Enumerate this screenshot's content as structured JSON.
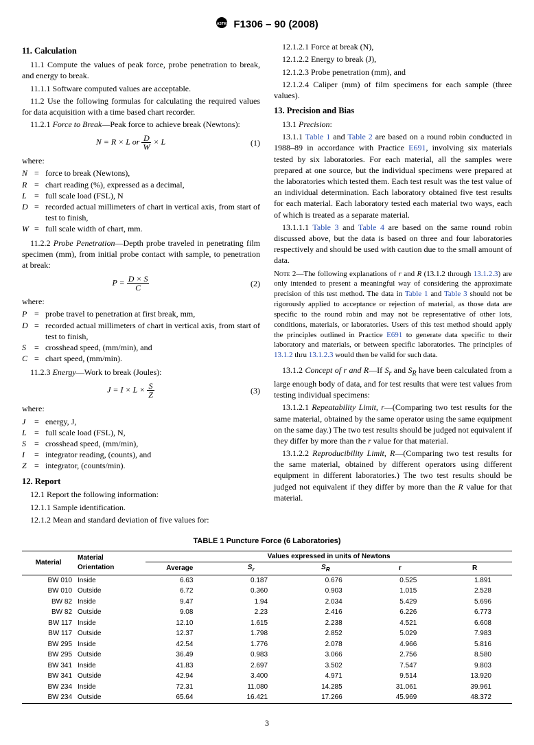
{
  "header": {
    "designation": "F1306 – 90  (2008)"
  },
  "left": {
    "s11": {
      "head": "11.  Calculation",
      "p11_1": "11.1 Compute the values of peak force, probe penetration to break, and energy to break.",
      "p11_1_1": "11.1.1 Software computed values are acceptable.",
      "p11_2": "11.2 Use the following formulas for calculating the required values for data acquisition with a time based chart recorder.",
      "p11_2_1_a": "11.2.1 ",
      "p11_2_1_label": "Force to Break",
      "p11_2_1_b": "—Peak force to achieve break (Newtons):",
      "eq1_pre": "N = R × L or ",
      "eq1_num": "D",
      "eq1_den": "W",
      "eq1_post": " × L",
      "eq1_no": "(1)",
      "where": "where:",
      "defs1": [
        {
          "sym": "N",
          "def": "force to break (Newtons),"
        },
        {
          "sym": "R",
          "def": "chart reading (%), expressed as a decimal,"
        },
        {
          "sym": "L",
          "def": "full scale load (FSL), N"
        },
        {
          "sym": "D",
          "def": "recorded actual millimeters of chart in vertical axis, from start of test to finish,"
        },
        {
          "sym": "W",
          "def": "full scale width of chart, mm."
        }
      ],
      "p11_2_2_a": "11.2.2 ",
      "p11_2_2_label": "Probe Penetration",
      "p11_2_2_b": "—Depth probe traveled in penetrating film specimen (mm), from initial probe contact with sample, to penetration at break:",
      "eq2_pre": "P = ",
      "eq2_num": "D × S",
      "eq2_den": "C",
      "eq2_no": "(2)",
      "defs2": [
        {
          "sym": "P",
          "def": "probe travel to penetration at first break, mm,"
        },
        {
          "sym": "D",
          "def": "recorded actual millimeters of chart in vertical axis, from start of test to finish,"
        },
        {
          "sym": "S",
          "def": "crosshead speed, (mm/min), and"
        },
        {
          "sym": "C",
          "def": "chart speed, (mm/min)."
        }
      ],
      "p11_2_3_a": "11.2.3 ",
      "p11_2_3_label": "Energy",
      "p11_2_3_b": "—Work to break (Joules):",
      "eq3_pre": "J = I × L × ",
      "eq3_num": "S",
      "eq3_den": "Z",
      "eq3_no": "(3)",
      "defs3": [
        {
          "sym": "J",
          "def": "energy, J,"
        },
        {
          "sym": "L",
          "def": "full scale load (FSL), N,"
        },
        {
          "sym": "S",
          "def": "crosshead speed, (mm/min),"
        },
        {
          "sym": "I",
          "def": "integrator reading, (counts), and"
        },
        {
          "sym": "Z",
          "def": "integrator, (counts/min)."
        }
      ]
    },
    "s12": {
      "head": "12.  Report",
      "p12_1": "12.1 Report the following information:",
      "p12_1_1": "12.1.1 Sample identification.",
      "p12_1_2": "12.1.2 Mean and standard deviation of five values for:"
    }
  },
  "right": {
    "p12_1_2_1": "12.1.2.1 Force at break (N),",
    "p12_1_2_2": "12.1.2.2 Energy to break (J),",
    "p12_1_2_3": "12.1.2.3 Probe penetration (mm), and",
    "p12_1_2_4": "12.1.2.4 Caliper (mm) of film specimens for each sample (three values).",
    "s13": {
      "head": "13.  Precision and Bias",
      "p13_1": "13.1 ",
      "p13_1_label": "Precision",
      "p13_1_colon": ":",
      "p13_1_1_a": "13.1.1 ",
      "t1": "Table 1",
      "and": " and ",
      "t2": "Table 2",
      "p13_1_1_b": " are based on a round robin conducted in 1988–89 in accordance with Practice ",
      "e691": "E691",
      "p13_1_1_c": ", involving six materials tested by six laboratories. For each material, all the samples were prepared at one source, but the individual specimens were prepared at the laboratories which tested them. Each test result was the test value of an individual determination. Each laboratory obtained five test results for each material. Each laboratory tested each material two ways, each of which is treated as a separate material.",
      "p13_1_1_1_a": "13.1.1.1 ",
      "t3": "Table 3",
      "t4": "Table 4",
      "p13_1_1_1_b": " are based on the same round robin discussed above, but the data is based on three and four laboratories respectively and should be used with caution due to the small amount of data.",
      "note_head": "Note 2",
      "note_a": "—The following explanations of ",
      "note_r": "r",
      "note_and": " and ",
      "note_R": "R",
      "note_b": " (13.1.2 through ",
      "l13123": "13.1.2.3",
      "note_c": ") are only intended to present a meaningful way of considering the approximate precision of this test method. The data in ",
      "note_d": " should not be rigorously applied to acceptance or rejection of material, as those data are specific to the round robin and may not be representative of other lots, conditions, materials, or laboratories. Users of this test method should apply the principles outlined in Practice ",
      "note_e": " to generate data specific to their laboratory and materials, or between specific laboratories. The principles of ",
      "l1312": "13.1.2",
      "note_f": " thru ",
      "note_g": " would then be valid for such data.",
      "p13_1_2_a": "13.1.2 ",
      "p13_1_2_label": "Concept of r and R",
      "p13_1_2_b": "—If ",
      "Sr": "S",
      "rsub": "r",
      "SR": "S",
      "Rsub": "R",
      "p13_1_2_c": " have been calculated from a large enough body of data, and for test results that were test values from testing individual specimens:",
      "p13_1_2_1_a": "13.1.2.1 ",
      "p13_1_2_1_label": "Repeatability Limit, r",
      "p13_1_2_1_b": "—(Comparing two test results for the same material, obtained by the same operator using the same equipment on the same day.) The two test results should be judged not equivalent if they differ by more than the ",
      "p13_1_2_1_c": " value for that material.",
      "p13_1_2_2_a": "13.1.2.2 ",
      "p13_1_2_2_label": "Reproducibility Limit, R",
      "p13_1_2_2_b": "—(Comparing two test results for the same material, obtained by different operators using different equipment in different laboratories.) The two test results should be judged not equivalent if they differ by more than the ",
      "p13_1_2_2_c": " value for that material."
    }
  },
  "table": {
    "title": "TABLE 1  Puncture Force (6 Laboratories)",
    "h_material": "Material",
    "h_orient": "Material\nOrientation",
    "h_values": "Values expressed in units of Newtons",
    "h_avg": "Average",
    "h_sr": "Sᵣ",
    "h_SR": "S_R",
    "h_r": "r",
    "h_R": "R",
    "rows": [
      {
        "m": "BW 010",
        "o": "Inside",
        "a": "6.63",
        "sr": "0.187",
        "SR": "0.676",
        "r": "0.525",
        "R": "1.891"
      },
      {
        "m": "BW 010",
        "o": "Outside",
        "a": "6.72",
        "sr": "0.360",
        "SR": "0.903",
        "r": "1.015",
        "R": "2.528"
      },
      {
        "m": "BW 82",
        "o": "Inside",
        "a": "9.47",
        "sr": "1.94",
        "SR": "2.034",
        "r": "5.429",
        "R": "5.696"
      },
      {
        "m": "BW 82",
        "o": "Outside",
        "a": "9.08",
        "sr": "2.23",
        "SR": "2.416",
        "r": "6.226",
        "R": "6.773"
      },
      {
        "m": "BW 117",
        "o": "Inside",
        "a": "12.10",
        "sr": "1.615",
        "SR": "2.238",
        "r": "4.521",
        "R": "6.608"
      },
      {
        "m": "BW 117",
        "o": "Outside",
        "a": "12.37",
        "sr": "1.798",
        "SR": "2.852",
        "r": "5.029",
        "R": "7.983"
      },
      {
        "m": "BW 295",
        "o": "Inside",
        "a": "42.54",
        "sr": "1.776",
        "SR": "2.078",
        "r": "4.966",
        "R": "5.816"
      },
      {
        "m": "BW 295",
        "o": "Outside",
        "a": "36.49",
        "sr": "0.983",
        "SR": "3.066",
        "r": "2.756",
        "R": "8.580"
      },
      {
        "m": "BW 341",
        "o": "Inside",
        "a": "41.83",
        "sr": "2.697",
        "SR": "3.502",
        "r": "7.547",
        "R": "9.803"
      },
      {
        "m": "BW 341",
        "o": "Outside",
        "a": "42.94",
        "sr": "3.400",
        "SR": "4.971",
        "r": "9.514",
        "R": "13.920"
      },
      {
        "m": "BW 234",
        "o": "Inside",
        "a": "72.31",
        "sr": "11.080",
        "SR": "14.285",
        "r": "31.061",
        "R": "39.961"
      },
      {
        "m": "BW 234",
        "o": "Outside",
        "a": "65.64",
        "sr": "16.421",
        "SR": "17.266",
        "r": "45.969",
        "R": "48.372"
      }
    ]
  },
  "pagenum": "3"
}
